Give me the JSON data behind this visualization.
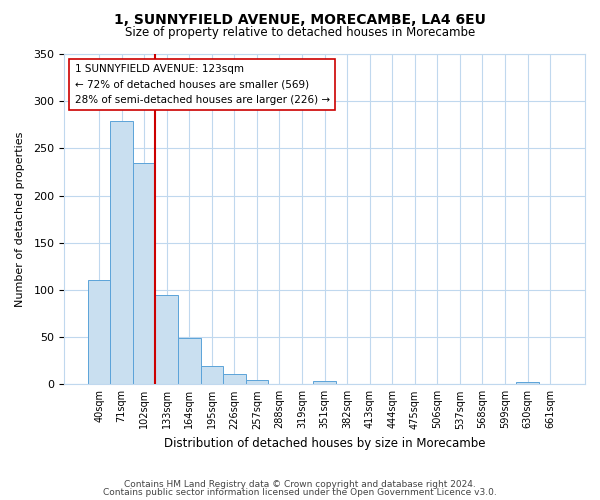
{
  "title": "1, SUNNYFIELD AVENUE, MORECAMBE, LA4 6EU",
  "subtitle": "Size of property relative to detached houses in Morecambe",
  "xlabel": "Distribution of detached houses by size in Morecambe",
  "ylabel": "Number of detached properties",
  "bar_labels": [
    "40sqm",
    "71sqm",
    "102sqm",
    "133sqm",
    "164sqm",
    "195sqm",
    "226sqm",
    "257sqm",
    "288sqm",
    "319sqm",
    "351sqm",
    "382sqm",
    "413sqm",
    "444sqm",
    "475sqm",
    "506sqm",
    "537sqm",
    "568sqm",
    "599sqm",
    "630sqm",
    "661sqm"
  ],
  "bar_heights": [
    111,
    279,
    235,
    95,
    49,
    19,
    11,
    5,
    0,
    0,
    3,
    0,
    0,
    0,
    0,
    0,
    0,
    0,
    0,
    2,
    0
  ],
  "bar_color": "#c9dff0",
  "bar_edge_color": "#5ba3d9",
  "vline_x": 2.5,
  "vline_color": "#cc0000",
  "annotation_line1": "1 SUNNYFIELD AVENUE: 123sqm",
  "annotation_line2": "← 72% of detached houses are smaller (569)",
  "annotation_line3": "28% of semi-detached houses are larger (226) →",
  "ylim": [
    0,
    350
  ],
  "yticks": [
    0,
    50,
    100,
    150,
    200,
    250,
    300,
    350
  ],
  "footer1": "Contains HM Land Registry data © Crown copyright and database right 2024.",
  "footer2": "Contains public sector information licensed under the Open Government Licence v3.0.",
  "bg_color": "#ffffff",
  "grid_color": "#c0d8ee"
}
